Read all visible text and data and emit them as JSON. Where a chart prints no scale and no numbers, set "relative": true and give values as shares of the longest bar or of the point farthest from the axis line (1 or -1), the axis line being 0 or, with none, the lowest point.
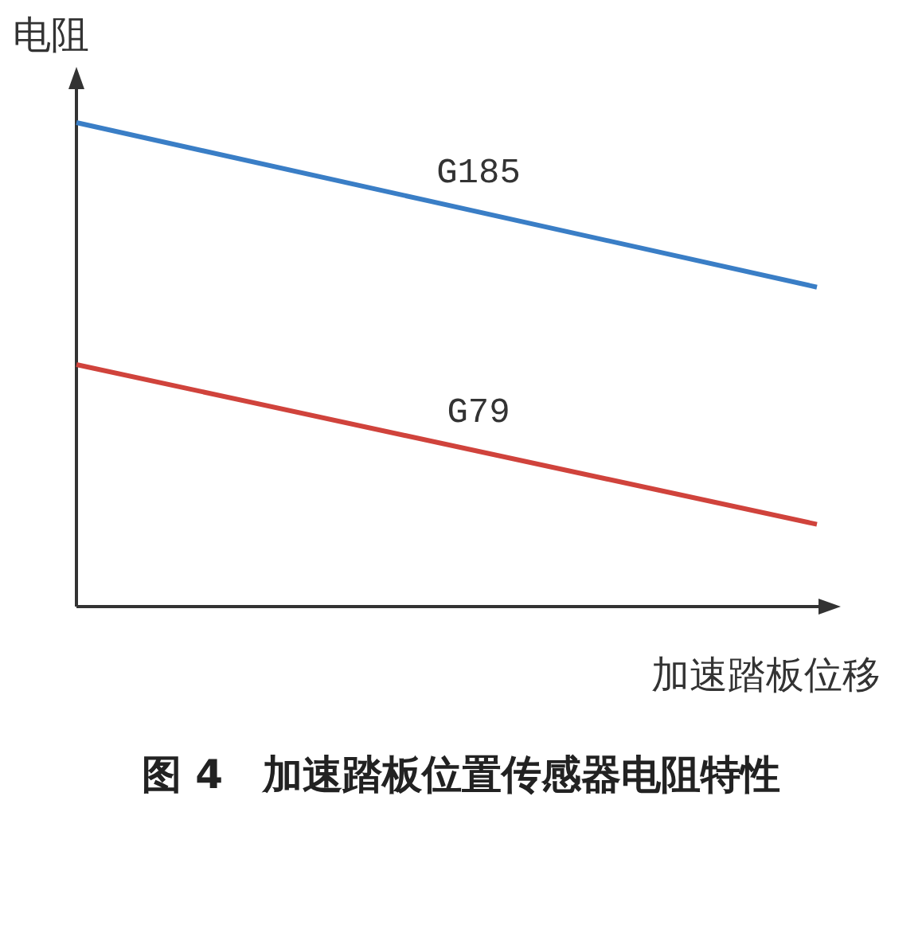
{
  "chart_data": {
    "type": "line",
    "relative": true,
    "title": "图 4　加速踏板位置传感器电阻特性",
    "xlabel": "加速踏板位移",
    "ylabel": "电阻",
    "categories": [
      null,
      null
    ],
    "series": [
      {
        "name": "G185",
        "color": "#3a7ec6",
        "values": [
          1,
          0.66
        ]
      },
      {
        "name": "G79",
        "color": "#d0433c",
        "values": [
          0.5,
          0.17
        ]
      }
    ]
  }
}
